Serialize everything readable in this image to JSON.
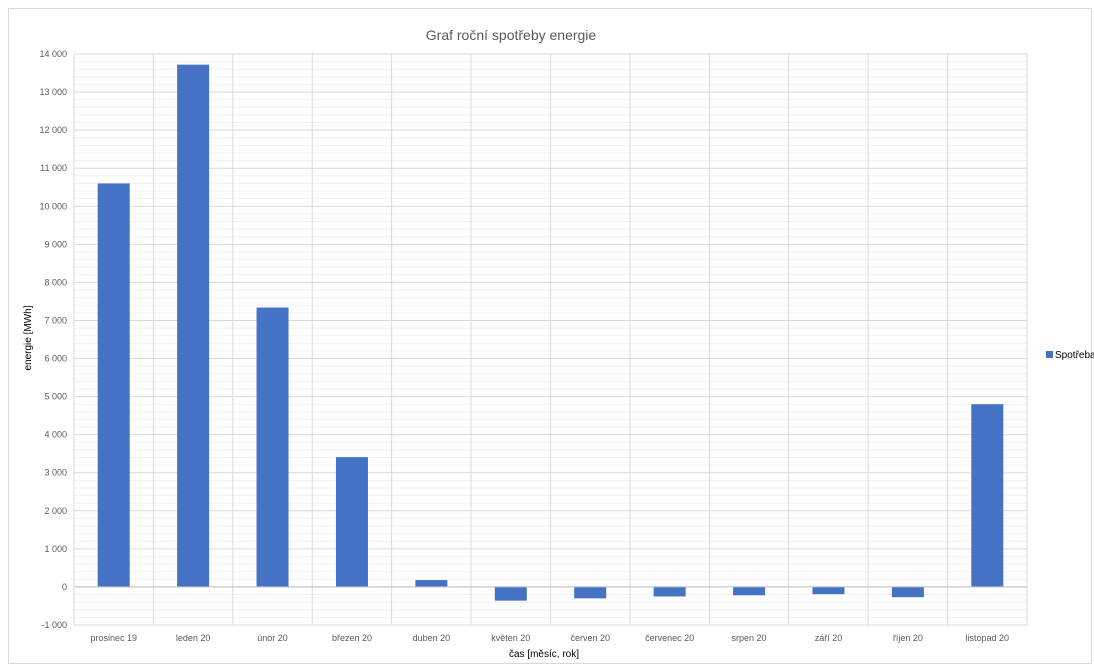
{
  "chart_data": {
    "type": "bar",
    "title": "Graf roční spotřeby energie",
    "xlabel": "čas [měsíc, rok]",
    "ylabel": "energie [MWh]",
    "ylim": [
      -1000,
      14000
    ],
    "y_ticks": [
      "-1 000",
      "0",
      "1 000",
      "2 000",
      "3 000",
      "4 000",
      "5 000",
      "6 000",
      "7 000",
      "8 000",
      "9 000",
      "10 000",
      "11 000",
      "12 000",
      "13 000",
      "14 000"
    ],
    "y_tick_values": [
      -1000,
      0,
      1000,
      2000,
      3000,
      4000,
      5000,
      6000,
      7000,
      8000,
      9000,
      10000,
      11000,
      12000,
      13000,
      14000
    ],
    "categories": [
      "prosinec 19",
      "leden 20",
      "únor 20",
      "březen 20",
      "duben 20",
      "květen 20",
      "červen 20",
      "červenec 20",
      "srpen 20",
      "září 20",
      "říjen 20",
      "listopad 20"
    ],
    "series": [
      {
        "name": "Spotřeba",
        "color": "#4472C4",
        "values": [
          10600,
          13720,
          7340,
          3410,
          180,
          -360,
          -300,
          -250,
          -220,
          -190,
          -270,
          4800
        ]
      }
    ],
    "grid": true,
    "legend_position": "right"
  }
}
